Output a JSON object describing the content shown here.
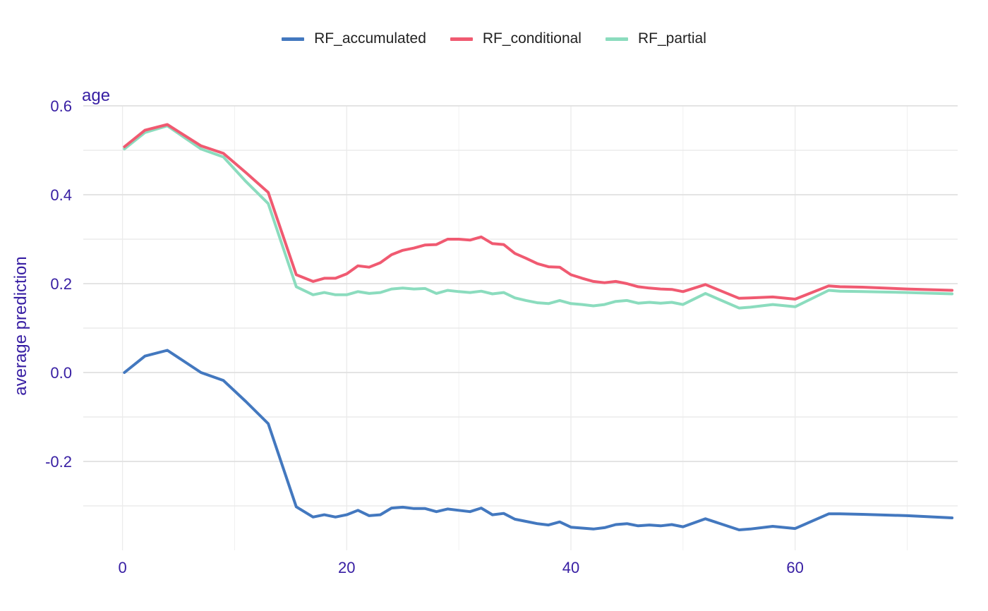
{
  "chart_data": {
    "type": "line",
    "title": "age",
    "xlabel": "",
    "ylabel": "average prediction",
    "xlim": [
      -3.5,
      74.5
    ],
    "ylim": [
      -0.4,
      0.6
    ],
    "x_ticks": [
      0,
      20,
      40,
      60
    ],
    "y_ticks": [
      -0.2,
      0.0,
      0.2,
      0.4,
      0.6
    ],
    "y_tick_labels": [
      "-0.2",
      "0.0",
      "0.2",
      "0.4",
      "0.6"
    ],
    "grid": true,
    "legend_position": "top",
    "series": [
      {
        "name": "RF_accumulated",
        "color": "#4378bf",
        "points": [
          [
            0.17,
            0.0
          ],
          [
            2,
            0.037
          ],
          [
            4,
            0.05
          ],
          [
            7,
            0.0
          ],
          [
            9,
            -0.018
          ],
          [
            11,
            -0.065
          ],
          [
            13,
            -0.115
          ],
          [
            15.5,
            -0.302
          ],
          [
            17,
            -0.325
          ],
          [
            18,
            -0.32
          ],
          [
            19,
            -0.325
          ],
          [
            20,
            -0.32
          ],
          [
            21,
            -0.31
          ],
          [
            22,
            -0.322
          ],
          [
            23,
            -0.32
          ],
          [
            24,
            -0.305
          ],
          [
            25,
            -0.303
          ],
          [
            26,
            -0.306
          ],
          [
            27,
            -0.306
          ],
          [
            28,
            -0.313
          ],
          [
            29,
            -0.307
          ],
          [
            30,
            -0.31
          ],
          [
            31,
            -0.313
          ],
          [
            32,
            -0.305
          ],
          [
            33,
            -0.32
          ],
          [
            34,
            -0.317
          ],
          [
            35,
            -0.33
          ],
          [
            36,
            -0.335
          ],
          [
            37,
            -0.34
          ],
          [
            38,
            -0.343
          ],
          [
            39,
            -0.336
          ],
          [
            40,
            -0.348
          ],
          [
            41,
            -0.35
          ],
          [
            42,
            -0.352
          ],
          [
            43,
            -0.349
          ],
          [
            44,
            -0.342
          ],
          [
            45,
            -0.34
          ],
          [
            46,
            -0.345
          ],
          [
            47,
            -0.343
          ],
          [
            48,
            -0.345
          ],
          [
            49,
            -0.342
          ],
          [
            50,
            -0.347
          ],
          [
            52,
            -0.329
          ],
          [
            55,
            -0.354
          ],
          [
            56,
            -0.352
          ],
          [
            58,
            -0.346
          ],
          [
            60,
            -0.351
          ],
          [
            63,
            -0.318
          ],
          [
            64,
            -0.318
          ],
          [
            66,
            -0.319
          ],
          [
            70,
            -0.322
          ],
          [
            74,
            -0.327
          ]
        ]
      },
      {
        "name": "RF_conditional",
        "color": "#f05a71",
        "points": [
          [
            0.17,
            0.508
          ],
          [
            2,
            0.545
          ],
          [
            4,
            0.558
          ],
          [
            7,
            0.51
          ],
          [
            9,
            0.493
          ],
          [
            11,
            0.45
          ],
          [
            13,
            0.405
          ],
          [
            15.5,
            0.22
          ],
          [
            17,
            0.205
          ],
          [
            18,
            0.212
          ],
          [
            19,
            0.212
          ],
          [
            20,
            0.222
          ],
          [
            21,
            0.24
          ],
          [
            22,
            0.237
          ],
          [
            23,
            0.247
          ],
          [
            24,
            0.265
          ],
          [
            25,
            0.275
          ],
          [
            26,
            0.28
          ],
          [
            27,
            0.287
          ],
          [
            28,
            0.288
          ],
          [
            29,
            0.3
          ],
          [
            30,
            0.3
          ],
          [
            31,
            0.298
          ],
          [
            32,
            0.305
          ],
          [
            33,
            0.29
          ],
          [
            34,
            0.288
          ],
          [
            35,
            0.268
          ],
          [
            36,
            0.257
          ],
          [
            37,
            0.245
          ],
          [
            38,
            0.238
          ],
          [
            39,
            0.237
          ],
          [
            40,
            0.22
          ],
          [
            41,
            0.212
          ],
          [
            42,
            0.205
          ],
          [
            43,
            0.202
          ],
          [
            44,
            0.205
          ],
          [
            45,
            0.2
          ],
          [
            46,
            0.193
          ],
          [
            47,
            0.19
          ],
          [
            48,
            0.188
          ],
          [
            49,
            0.187
          ],
          [
            50,
            0.182
          ],
          [
            52,
            0.198
          ],
          [
            55,
            0.167
          ],
          [
            56,
            0.168
          ],
          [
            58,
            0.17
          ],
          [
            60,
            0.165
          ],
          [
            63,
            0.195
          ],
          [
            64,
            0.193
          ],
          [
            66,
            0.192
          ],
          [
            70,
            0.188
          ],
          [
            74,
            0.185
          ]
        ]
      },
      {
        "name": "RF_partial",
        "color": "#8bdcbe",
        "points": [
          [
            0.17,
            0.503
          ],
          [
            2,
            0.54
          ],
          [
            4,
            0.555
          ],
          [
            7,
            0.503
          ],
          [
            9,
            0.485
          ],
          [
            11,
            0.43
          ],
          [
            13,
            0.38
          ],
          [
            15.5,
            0.193
          ],
          [
            17,
            0.175
          ],
          [
            18,
            0.18
          ],
          [
            19,
            0.175
          ],
          [
            20,
            0.175
          ],
          [
            21,
            0.182
          ],
          [
            22,
            0.178
          ],
          [
            23,
            0.18
          ],
          [
            24,
            0.188
          ],
          [
            25,
            0.19
          ],
          [
            26,
            0.188
          ],
          [
            27,
            0.189
          ],
          [
            28,
            0.178
          ],
          [
            29,
            0.185
          ],
          [
            30,
            0.182
          ],
          [
            31,
            0.18
          ],
          [
            32,
            0.183
          ],
          [
            33,
            0.177
          ],
          [
            34,
            0.18
          ],
          [
            35,
            0.168
          ],
          [
            36,
            0.162
          ],
          [
            37,
            0.157
          ],
          [
            38,
            0.155
          ],
          [
            39,
            0.162
          ],
          [
            40,
            0.155
          ],
          [
            41,
            0.153
          ],
          [
            42,
            0.15
          ],
          [
            43,
            0.153
          ],
          [
            44,
            0.16
          ],
          [
            45,
            0.162
          ],
          [
            46,
            0.156
          ],
          [
            47,
            0.158
          ],
          [
            48,
            0.156
          ],
          [
            49,
            0.158
          ],
          [
            50,
            0.153
          ],
          [
            52,
            0.178
          ],
          [
            55,
            0.145
          ],
          [
            56,
            0.147
          ],
          [
            58,
            0.153
          ],
          [
            60,
            0.148
          ],
          [
            63,
            0.185
          ],
          [
            64,
            0.183
          ],
          [
            66,
            0.182
          ],
          [
            70,
            0.18
          ],
          [
            74,
            0.177
          ]
        ]
      }
    ]
  }
}
